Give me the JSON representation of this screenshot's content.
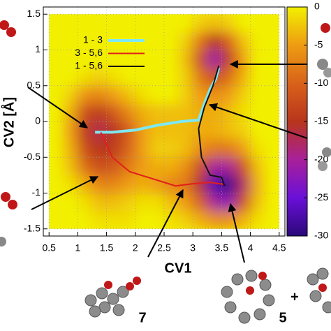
{
  "chart_data": {
    "type": "heatmap",
    "xlabel": "CV1",
    "ylabel": "CV2 [Å]",
    "xlim": [
      0.4,
      4.6
    ],
    "ylim": [
      -1.6,
      1.6
    ],
    "xticks": [
      0.5,
      1,
      1.5,
      2,
      2.5,
      3,
      3.5,
      4,
      4.5
    ],
    "yticks": [
      -1.5,
      -1,
      -0.5,
      0,
      0.5,
      1,
      1.5
    ],
    "grid": true,
    "x": [
      0.625,
      0.875,
      1.125,
      1.375,
      1.625,
      1.875,
      2.125,
      2.375,
      2.625,
      2.875,
      3.125,
      3.375,
      3.625,
      3.875,
      4.125,
      4.375
    ],
    "y": [
      -1.375,
      -1.125,
      -0.875,
      -0.625,
      -0.375,
      -0.125,
      0.125,
      0.375,
      0.625,
      0.875,
      1.125,
      1.375
    ],
    "z": [
      [
        0,
        0,
        0,
        -1,
        -1,
        -1,
        0,
        0,
        -1,
        -2,
        -4,
        -6,
        -6,
        -4,
        -1,
        0
      ],
      [
        0,
        0,
        -1,
        -3,
        -3,
        -2,
        -1,
        -1,
        -3,
        -5,
        -10,
        -20,
        -22,
        -12,
        -3,
        0
      ],
      [
        0,
        -1,
        -4,
        -7,
        -7,
        -5,
        -4,
        -5,
        -7,
        -8,
        -16,
        -27,
        -29,
        -18,
        -4,
        0
      ],
      [
        0,
        -3,
        -9,
        -12,
        -11,
        -8,
        -5,
        -4,
        -4,
        -6,
        -12,
        -20,
        -20,
        -12,
        -3,
        0
      ],
      [
        0,
        -4,
        -12,
        -15,
        -14,
        -10,
        -5,
        -2,
        -2,
        -3,
        -6,
        -8,
        -8,
        -5,
        -1,
        0
      ],
      [
        0,
        -5,
        -14,
        -17,
        -15,
        -11,
        -5,
        -3,
        -3,
        -3,
        -4,
        -4,
        -3,
        -2,
        0,
        0
      ],
      [
        0,
        -4,
        -12,
        -14,
        -11,
        -7,
        -4,
        -3,
        -3,
        -3,
        -4,
        -4,
        -3,
        -1,
        0,
        0
      ],
      [
        0,
        -2,
        -6,
        -7,
        -5,
        -3,
        -1,
        0,
        0,
        -2,
        -5,
        -6,
        -5,
        -2,
        0,
        0
      ],
      [
        0,
        0,
        -1,
        -2,
        -1,
        0,
        0,
        0,
        0,
        -2,
        -8,
        -12,
        -9,
        -4,
        0,
        0
      ],
      [
        0,
        0,
        0,
        0,
        0,
        0,
        0,
        0,
        0,
        -3,
        -12,
        -21,
        -14,
        -5,
        0,
        0
      ],
      [
        0,
        0,
        0,
        0,
        0,
        0,
        0,
        0,
        0,
        -2,
        -8,
        -15,
        -10,
        -3,
        0,
        0
      ],
      [
        0,
        0,
        0,
        0,
        0,
        0,
        0,
        0,
        0,
        0,
        -2,
        -3,
        -2,
        0,
        0,
        0
      ]
    ],
    "zlim": [
      -30,
      0
    ],
    "zticks": [
      0,
      -5,
      -10,
      -15,
      -20,
      -25,
      -30
    ],
    "colormap": [
      "#2a0878",
      "#6a10d8",
      "#a8209a",
      "#b8351c",
      "#d8621a",
      "#ee9c12",
      "#f2f000"
    ],
    "legend": "top left",
    "series": [
      {
        "name": "1 - 3",
        "color": "#7ee8f2",
        "width": 4,
        "x": [
          1.3,
          1.6,
          2.0,
          2.4,
          2.8,
          3.1,
          3.2,
          3.3,
          3.4,
          3.45
        ],
        "y": [
          -0.15,
          -0.15,
          -0.12,
          -0.05,
          0.0,
          0.02,
          0.25,
          0.45,
          0.6,
          0.75
        ]
      },
      {
        "name": "3 - 5,6",
        "color": "#e0201a",
        "width": 2,
        "x": [
          1.4,
          1.6,
          1.9,
          2.3,
          2.7,
          3.0,
          3.3,
          3.55
        ],
        "y": [
          -0.15,
          -0.5,
          -0.7,
          -0.8,
          -0.9,
          -0.87,
          -0.85,
          -0.88
        ]
      },
      {
        "name": "1 - 5,6",
        "color": "#111111",
        "width": 2,
        "x": [
          3.45,
          3.35,
          3.2,
          3.1,
          3.15,
          3.3,
          3.5,
          3.55
        ],
        "y": [
          0.78,
          0.5,
          0.2,
          -0.1,
          -0.5,
          -0.75,
          -0.78,
          -0.9
        ]
      }
    ],
    "annotations": [
      "7",
      "5",
      "+"
    ]
  }
}
